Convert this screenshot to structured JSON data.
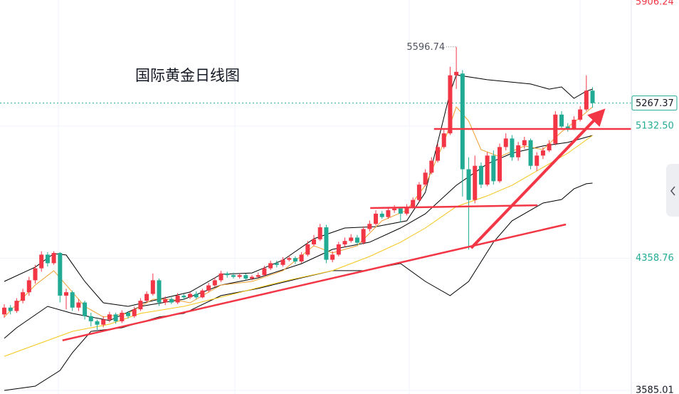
{
  "chart_data": {
    "type": "candlestick",
    "title": "国际黄金日线图",
    "xlim": [
      -0.69,
      101.26
    ],
    "ylim": [
      3585.01,
      5906.24
    ],
    "yticks": [
      3585.01,
      4358.76,
      {
        "value": 5132.5,
        "label": "5132.50"
      },
      5906.24
    ],
    "ytick_colors": [
      "#131722",
      "#22ab94",
      "#22ab94",
      "#f23645"
    ],
    "grid": true,
    "up_color": "#f23645",
    "down_color": "#22ab94",
    "last_price": 5267.37,
    "max_label": 5596.74,
    "candles": {
      "open": [
        4030,
        4070,
        4050,
        4110,
        4160,
        4230,
        4300,
        4380,
        4330,
        4390,
        4140,
        4160,
        4070,
        4100,
        4020,
        3990,
        3970,
        4000,
        4030,
        3990,
        4040,
        4020,
        4060,
        4110,
        4150,
        4230,
        4100,
        4120,
        4100,
        4140,
        4130,
        4150,
        4130,
        4170,
        4200,
        4230,
        4270,
        4260,
        4250,
        4260,
        4240,
        4250,
        4260,
        4300,
        4330,
        4320,
        4350,
        4360,
        4340,
        4380,
        4440,
        4470,
        4540,
        4350,
        4380,
        4440,
        4460,
        4480,
        4450,
        4530,
        4560,
        4620,
        4600,
        4640,
        4650,
        4620,
        4660,
        4700,
        4790,
        4860,
        4930,
        5010,
        5090,
        5430,
        5440,
        4880,
        4700,
        4900,
        4790,
        4960,
        4810,
        5010,
        5060,
        4950,
        5020,
        5050,
        4900,
        4960,
        4990,
        5030,
        5200,
        5130,
        5120,
        5170,
        5230,
        5340
      ],
      "high": [
        4090,
        4085,
        4125,
        4180,
        4250,
        4320,
        4400,
        4395,
        4400,
        4395,
        4180,
        4170,
        4120,
        4110,
        4040,
        4000,
        4020,
        4045,
        4040,
        4055,
        4050,
        4075,
        4125,
        4165,
        4270,
        4240,
        4135,
        4130,
        4155,
        4150,
        4160,
        4165,
        4180,
        4215,
        4245,
        4285,
        4280,
        4275,
        4270,
        4270,
        4260,
        4275,
        4315,
        4345,
        4345,
        4365,
        4375,
        4370,
        4395,
        4460,
        4495,
        4560,
        4555,
        4400,
        4455,
        4480,
        4500,
        4495,
        4545,
        4580,
        4640,
        4635,
        4655,
        4670,
        4660,
        4675,
        4715,
        4805,
        4880,
        4950,
        5030,
        5110,
        5480,
        5596.74,
        5460,
        4950,
        4960,
        4920,
        4980,
        4990,
        5030,
        5090,
        5080,
        5040,
        5070,
        5060,
        4980,
        5010,
        5050,
        5220,
        5220,
        5150,
        5190,
        5250,
        5430,
        5360
      ],
      "low": [
        4010,
        4030,
        4040,
        4095,
        4140,
        4210,
        4280,
        4310,
        4320,
        4100,
        4060,
        4050,
        4050,
        4000,
        3960,
        3940,
        3955,
        3985,
        3975,
        3980,
        4005,
        4010,
        4050,
        4100,
        4140,
        4080,
        4085,
        4090,
        4090,
        4115,
        4120,
        4120,
        4125,
        4160,
        4190,
        4220,
        4245,
        4240,
        4240,
        4230,
        4230,
        4245,
        4255,
        4290,
        4305,
        4310,
        4340,
        4325,
        4330,
        4370,
        4430,
        4460,
        4330,
        4335,
        4370,
        4425,
        4450,
        4435,
        4440,
        4515,
        4550,
        4590,
        4590,
        4625,
        4570,
        4610,
        4650,
        4690,
        4780,
        4850,
        4920,
        5000,
        5080,
        5350,
        4720,
        4410,
        4680,
        4770,
        4780,
        4790,
        4800,
        4990,
        4930,
        4930,
        5000,
        4880,
        4870,
        4940,
        4980,
        5020,
        5110,
        5100,
        5110,
        5160,
        5220,
        5240
      ],
      "close": [
        4070,
        4050,
        4110,
        4160,
        4230,
        4300,
        4380,
        4330,
        4390,
        4140,
        4160,
        4070,
        4100,
        4020,
        3990,
        3970,
        4000,
        4030,
        3990,
        4040,
        4020,
        4060,
        4110,
        4150,
        4230,
        4100,
        4120,
        4100,
        4140,
        4130,
        4150,
        4130,
        4170,
        4200,
        4230,
        4270,
        4260,
        4250,
        4260,
        4240,
        4250,
        4260,
        4300,
        4330,
        4320,
        4350,
        4360,
        4340,
        4380,
        4440,
        4470,
        4540,
        4350,
        4380,
        4440,
        4460,
        4480,
        4450,
        4530,
        4560,
        4620,
        4600,
        4640,
        4650,
        4620,
        4660,
        4700,
        4790,
        4860,
        4930,
        5010,
        5090,
        5430,
        5450,
        4880,
        4700,
        4900,
        4790,
        4960,
        4810,
        5010,
        5060,
        4950,
        5020,
        5050,
        4900,
        4960,
        4990,
        5030,
        5200,
        5130,
        5120,
        5170,
        5230,
        5340,
        5267.37
      ]
    },
    "lines": [
      {
        "color": "#000000",
        "x": [
          0,
          5,
          8,
          10,
          13,
          16,
          20,
          25,
          30,
          35,
          40,
          45,
          50,
          55,
          60,
          65,
          68,
          70,
          72,
          73,
          78,
          85,
          88,
          90,
          92,
          94,
          95
        ],
        "values": [
          4223,
          4307,
          4386,
          4378,
          4223,
          4098,
          4077,
          4119,
          4161,
          4265,
          4273,
          4348,
          4473,
          4536,
          4544,
          4578,
          4745,
          5037,
          5329,
          5432,
          5404,
          5379,
          5349,
          5362,
          5295,
          5337,
          5349
        ]
      },
      {
        "color": "#000000",
        "x": [
          0,
          2,
          7,
          11,
          17,
          22,
          29,
          35,
          41,
          48,
          53,
          59,
          64,
          68,
          73,
          78,
          82,
          87,
          91,
          95
        ],
        "values": [
          3890,
          3952,
          4077,
          4036,
          3994,
          4077,
          4119,
          4202,
          4244,
          4327,
          4411,
          4453,
          4536,
          4619,
          4786,
          4911,
          4974,
          5016,
          5037,
          5078
        ]
      },
      {
        "color": "#000000",
        "x": [
          0,
          5,
          9,
          11,
          14,
          19,
          25,
          29,
          35,
          41,
          48,
          53,
          58,
          64,
          68,
          72,
          75,
          79,
          82,
          87,
          90,
          92,
          94,
          95
        ],
        "values": [
          3585,
          3610,
          3702,
          3806,
          3931,
          3952,
          4015,
          4036,
          4140,
          4182,
          4244,
          4286,
          4286,
          4328,
          4223,
          4140,
          4223,
          4453,
          4578,
          4682,
          4703,
          4765,
          4795,
          4799
        ]
      },
      {
        "color": "#f5c518",
        "x": [
          0,
          11,
          17,
          22,
          29,
          36,
          45,
          53,
          59,
          64,
          68,
          73,
          78,
          82,
          87,
          91,
          95
        ],
        "values": [
          3785,
          3931,
          3973,
          4036,
          4077,
          4140,
          4223,
          4286,
          4369,
          4453,
          4536,
          4661,
          4724,
          4786,
          4891,
          4974,
          5078
        ]
      },
      {
        "color": "#f0a030",
        "x": [
          0,
          5,
          8,
          10,
          13,
          16,
          20,
          24,
          27,
          30,
          35,
          40,
          45,
          50,
          53,
          57,
          61,
          65,
          68,
          71,
          73,
          75,
          77,
          80,
          84,
          87,
          90,
          93,
          95
        ],
        "values": [
          4015,
          4202,
          4286,
          4202,
          4077,
          4015,
          4036,
          4119,
          4119,
          4098,
          4202,
          4223,
          4286,
          4432,
          4390,
          4432,
          4578,
          4640,
          4786,
          5037,
          5245,
          5162,
          4995,
          4953,
          5016,
          4995,
          5099,
          5183,
          5245
        ]
      }
    ],
    "trendlines": [
      {
        "color": "#f23645",
        "x": [
          9.4,
          90.7
        ],
        "values": [
          3878,
          4557
        ]
      },
      {
        "color": "#f23645",
        "x": [
          59.1,
          86.1
        ],
        "values": [
          4653,
          4669
        ]
      },
      {
        "color": "#f23645",
        "x": [
          69.4,
          101.2
        ],
        "values": [
          5116,
          5116
        ]
      }
    ],
    "arrow": {
      "color": "#f23645",
      "x": [
        75.4,
        96.8
      ],
      "values": [
        4419,
        5224
      ]
    }
  }
}
